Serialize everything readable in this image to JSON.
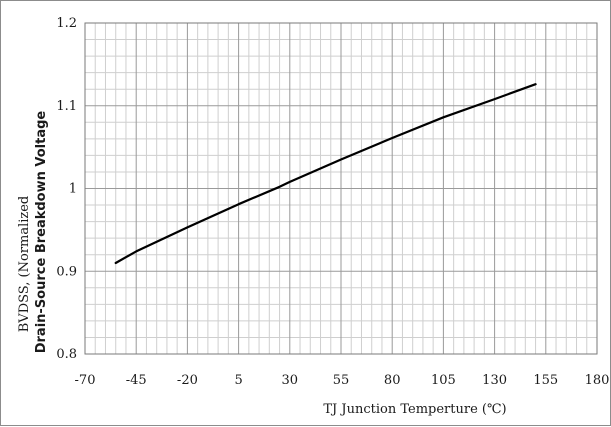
{
  "chart_data": {
    "type": "line",
    "title": "",
    "xlabel": "TJ  Junction Temperture (℃)",
    "ylabel_line1": "BVDSS, (Normalized",
    "ylabel_line2": "Drain-Source Breakdown Voltage",
    "xlim": [
      -70,
      180
    ],
    "ylim": [
      0.8,
      1.2
    ],
    "x_ticks": [
      -70,
      -45,
      -20,
      5,
      30,
      55,
      80,
      105,
      130,
      155,
      180
    ],
    "y_ticks": [
      0.8,
      0.9,
      1,
      1.1,
      1.2
    ],
    "x_tick_labels": [
      "-70",
      "-45",
      "-20",
      "5",
      "30",
      "55",
      "80",
      "105",
      "130",
      "155",
      "180"
    ],
    "y_tick_labels": [
      "0.8",
      "0.9",
      "1",
      "1.1",
      "1.2"
    ],
    "grid": true,
    "minor_grid_divisions": 5,
    "series": [
      {
        "x": [
          -55,
          -45,
          -20,
          5,
          25,
          30,
          55,
          80,
          105,
          130,
          150
        ],
        "y": [
          0.91,
          0.924,
          0.953,
          0.981,
          1.002,
          1.008,
          1.035,
          1.061,
          1.086,
          1.108,
          1.126
        ],
        "color": "#000000"
      }
    ]
  }
}
